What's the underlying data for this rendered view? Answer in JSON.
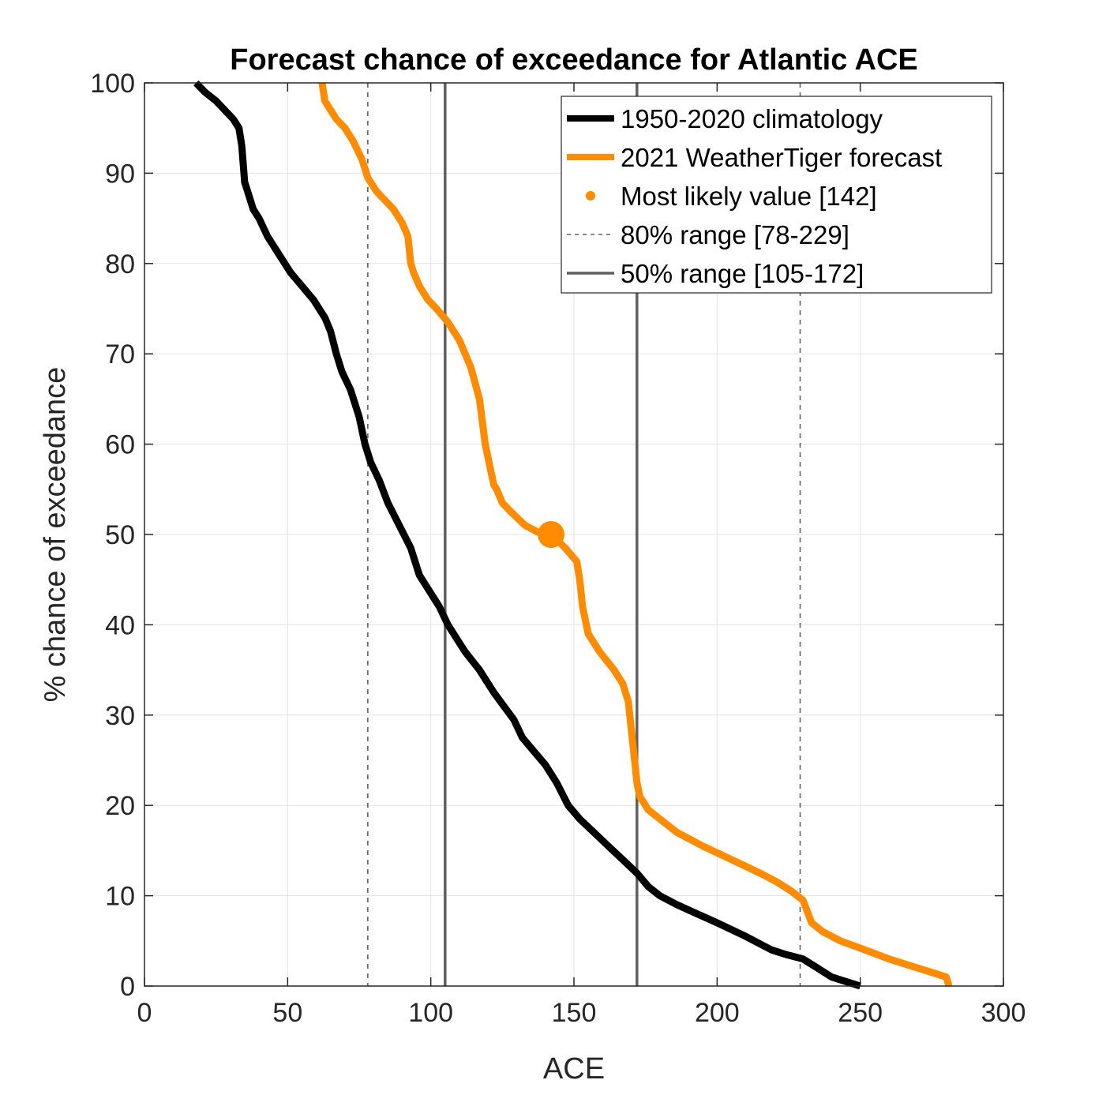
{
  "chart_data": {
    "type": "line",
    "title": "Forecast chance of exceedance for Atlantic ACE",
    "xlabel": "ACE",
    "ylabel": "% chance of exceedance",
    "xlim": [
      0,
      300
    ],
    "ylim": [
      0,
      100
    ],
    "xticks": [
      0,
      50,
      100,
      150,
      200,
      250,
      300
    ],
    "yticks": [
      0,
      10,
      20,
      30,
      40,
      50,
      60,
      70,
      80,
      90,
      100
    ],
    "grid": true,
    "legend_position": "top-right",
    "series": [
      {
        "name": "1950-2020 climatology",
        "color": "#000000",
        "x": [
          18,
          21,
          25,
          28,
          31,
          33,
          34,
          35,
          36,
          38,
          40,
          43,
          47,
          51,
          55,
          59,
          63,
          65,
          67,
          69,
          72,
          75,
          77,
          79,
          82,
          85,
          89,
          93,
          96,
          99,
          103,
          106,
          109,
          112,
          117,
          122,
          129,
          132,
          136,
          140,
          144,
          148,
          152,
          157,
          162,
          167,
          172,
          176,
          180,
          186,
          193,
          200,
          210,
          219,
          224,
          230,
          235,
          240,
          245,
          250
        ],
        "y": [
          100,
          99,
          98,
          97,
          96,
          95,
          93,
          89,
          88,
          86,
          85,
          83,
          81,
          79,
          77.5,
          76,
          74,
          72.5,
          70,
          68,
          66,
          63,
          60,
          58,
          56,
          53.5,
          51,
          48.5,
          45.5,
          44,
          42,
          40,
          38.5,
          37,
          35,
          32.5,
          29.5,
          27.5,
          26,
          24.5,
          22.5,
          20,
          18.5,
          17,
          15.5,
          14,
          12.5,
          11,
          10,
          9,
          8,
          7,
          5.5,
          4,
          3.5,
          3,
          2,
          1,
          0.5,
          0
        ]
      },
      {
        "name": "2021 WeatherTiger forecast",
        "color": "#ff8c00",
        "x": [
          62,
          63,
          65,
          67,
          70,
          73,
          76,
          78,
          81,
          84,
          87,
          90,
          92,
          93,
          94,
          96,
          99,
          102,
          106,
          110,
          114,
          117,
          119,
          121,
          122,
          123,
          125,
          128,
          133,
          139,
          142,
          147,
          151,
          152,
          153,
          155,
          159,
          164,
          167,
          169,
          170,
          171,
          172,
          173,
          174,
          176,
          180,
          186,
          195,
          205,
          215,
          221,
          226,
          230,
          233,
          237,
          243,
          250,
          260,
          270,
          280,
          281
        ],
        "y": [
          100,
          98,
          97,
          96,
          95,
          93.5,
          91.5,
          89.5,
          88,
          87,
          86,
          84.5,
          83,
          80,
          79,
          77.5,
          76,
          75,
          73.5,
          71.5,
          68.5,
          65,
          60,
          57,
          55.5,
          55,
          53.5,
          52.5,
          51,
          50,
          50,
          48.5,
          47,
          45,
          42,
          39,
          37,
          35,
          33.5,
          31.5,
          28.5,
          25.5,
          22.5,
          21,
          20.5,
          19.5,
          18.5,
          17,
          15.5,
          14,
          12.5,
          11.5,
          10.5,
          9.5,
          7,
          6,
          5,
          4.2,
          3,
          2,
          1,
          0
        ]
      }
    ],
    "most_likely": {
      "label": "Most likely value [142]",
      "x": 142,
      "y": 50,
      "color": "#ff8c00"
    },
    "range_80": {
      "label": "80% range [78-229]",
      "low": 78,
      "high": 229,
      "color": "#606060",
      "style": "dashed"
    },
    "range_50": {
      "label": "50% range [105-172]",
      "low": 105,
      "high": 172,
      "color": "#606060",
      "style": "solid"
    }
  }
}
